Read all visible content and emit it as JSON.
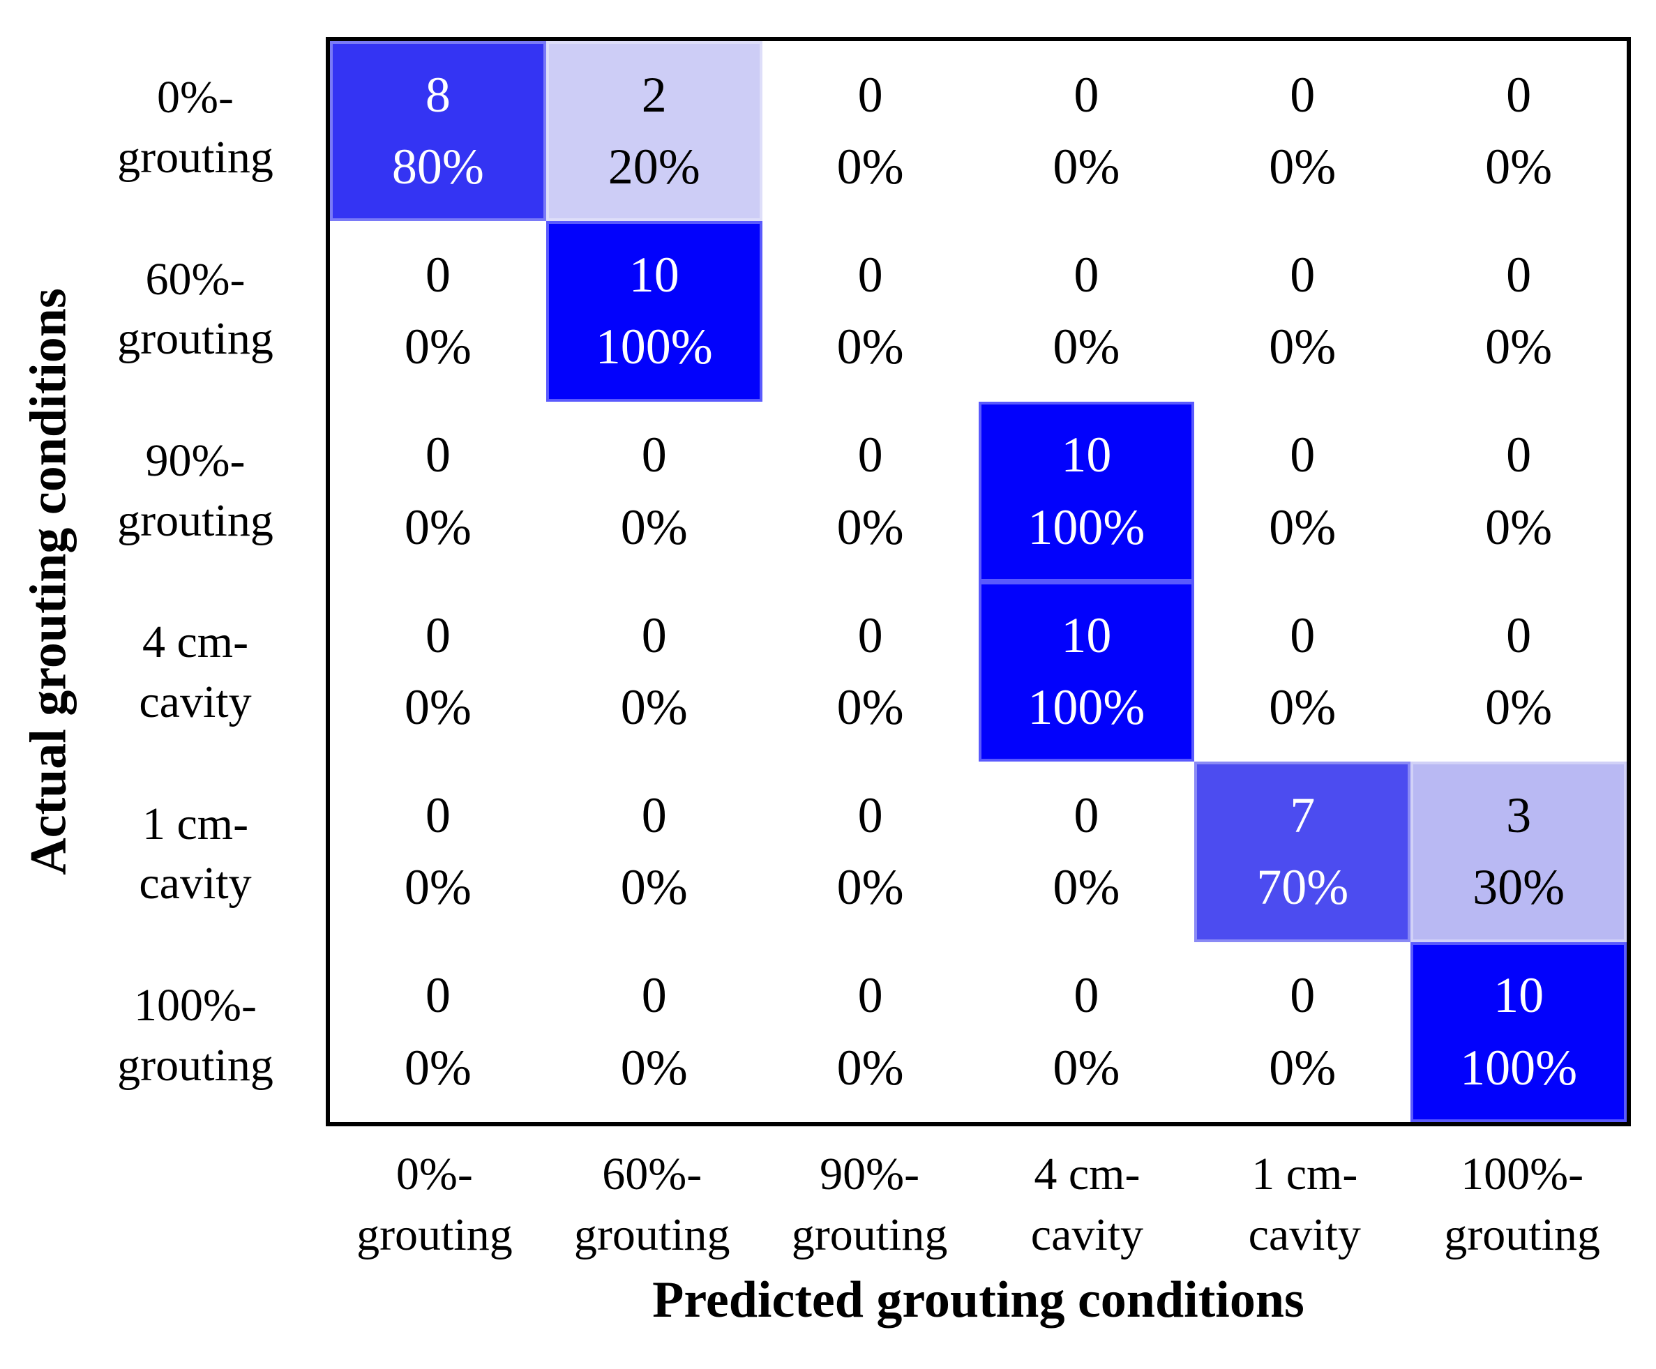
{
  "figure": {
    "background": "#ffffff",
    "matrix_border_color": "#000000"
  },
  "x_axis": {
    "title": "Predicted grouting conditions",
    "labels": [
      {
        "line1": "0%-",
        "line2": "grouting"
      },
      {
        "line1": "60%-",
        "line2": "grouting"
      },
      {
        "line1": "90%-",
        "line2": "grouting"
      },
      {
        "line1": "4 cm-",
        "line2": "cavity"
      },
      {
        "line1": "1 cm-",
        "line2": "cavity"
      },
      {
        "line1": "100%-",
        "line2": "grouting"
      }
    ]
  },
  "y_axis": {
    "title": "Actual grouting conditions",
    "labels": [
      {
        "line1": "0%-",
        "line2": "grouting"
      },
      {
        "line1": "60%-",
        "line2": "grouting"
      },
      {
        "line1": "90%-",
        "line2": "grouting"
      },
      {
        "line1": "4 cm-",
        "line2": "cavity"
      },
      {
        "line1": "1 cm-",
        "line2": "cavity"
      },
      {
        "line1": "100%-",
        "line2": "grouting"
      }
    ]
  },
  "chart_data": {
    "type": "heatmap",
    "xlabel": "Predicted grouting conditions",
    "ylabel": "Actual grouting conditions",
    "x_categories": [
      "0%-grouting",
      "60%-grouting",
      "90%-grouting",
      "4 cm-cavity",
      "1 cm-cavity",
      "100%-grouting"
    ],
    "y_categories": [
      "0%-grouting",
      "60%-grouting",
      "90%-grouting",
      "4 cm-cavity",
      "1 cm-cavity",
      "100%-grouting"
    ],
    "counts": [
      [
        8,
        2,
        0,
        0,
        0,
        0
      ],
      [
        0,
        10,
        0,
        0,
        0,
        0
      ],
      [
        0,
        0,
        0,
        10,
        0,
        0
      ],
      [
        0,
        0,
        0,
        10,
        0,
        0
      ],
      [
        0,
        0,
        0,
        0,
        7,
        3
      ],
      [
        0,
        0,
        0,
        0,
        0,
        10
      ]
    ],
    "percents": [
      [
        80,
        20,
        0,
        0,
        0,
        0
      ],
      [
        0,
        100,
        0,
        0,
        0,
        0
      ],
      [
        0,
        0,
        0,
        100,
        0,
        0
      ],
      [
        0,
        0,
        0,
        100,
        0,
        0
      ],
      [
        0,
        0,
        0,
        0,
        70,
        30
      ],
      [
        0,
        0,
        0,
        0,
        0,
        100
      ]
    ],
    "colormap": {
      "pct0": "#ffffff",
      "pct20": "#cdcdf6",
      "pct30": "#b9b9f3",
      "pct70": "#4c4cf0",
      "pct80": "#3434f3",
      "pct100": "#0202fc"
    },
    "grid": false,
    "legend": false,
    "cells": [
      [
        {
          "count": "8",
          "percent": "80%",
          "bg": "#3434f3",
          "fg": "#ffffff"
        },
        {
          "count": "2",
          "percent": "20%",
          "bg": "#cdcdf6",
          "fg": "#000000"
        },
        {
          "count": "0",
          "percent": "0%",
          "bg": "#ffffff",
          "fg": "#000000"
        },
        {
          "count": "0",
          "percent": "0%",
          "bg": "#ffffff",
          "fg": "#000000"
        },
        {
          "count": "0",
          "percent": "0%",
          "bg": "#ffffff",
          "fg": "#000000"
        },
        {
          "count": "0",
          "percent": "0%",
          "bg": "#ffffff",
          "fg": "#000000"
        }
      ],
      [
        {
          "count": "0",
          "percent": "0%",
          "bg": "#ffffff",
          "fg": "#000000"
        },
        {
          "count": "10",
          "percent": "100%",
          "bg": "#0202fc",
          "fg": "#ffffff"
        },
        {
          "count": "0",
          "percent": "0%",
          "bg": "#ffffff",
          "fg": "#000000"
        },
        {
          "count": "0",
          "percent": "0%",
          "bg": "#ffffff",
          "fg": "#000000"
        },
        {
          "count": "0",
          "percent": "0%",
          "bg": "#ffffff",
          "fg": "#000000"
        },
        {
          "count": "0",
          "percent": "0%",
          "bg": "#ffffff",
          "fg": "#000000"
        }
      ],
      [
        {
          "count": "0",
          "percent": "0%",
          "bg": "#ffffff",
          "fg": "#000000"
        },
        {
          "count": "0",
          "percent": "0%",
          "bg": "#ffffff",
          "fg": "#000000"
        },
        {
          "count": "0",
          "percent": "0%",
          "bg": "#ffffff",
          "fg": "#000000"
        },
        {
          "count": "10",
          "percent": "100%",
          "bg": "#0202fc",
          "fg": "#ffffff"
        },
        {
          "count": "0",
          "percent": "0%",
          "bg": "#ffffff",
          "fg": "#000000"
        },
        {
          "count": "0",
          "percent": "0%",
          "bg": "#ffffff",
          "fg": "#000000"
        }
      ],
      [
        {
          "count": "0",
          "percent": "0%",
          "bg": "#ffffff",
          "fg": "#000000"
        },
        {
          "count": "0",
          "percent": "0%",
          "bg": "#ffffff",
          "fg": "#000000"
        },
        {
          "count": "0",
          "percent": "0%",
          "bg": "#ffffff",
          "fg": "#000000"
        },
        {
          "count": "10",
          "percent": "100%",
          "bg": "#0202fc",
          "fg": "#ffffff"
        },
        {
          "count": "0",
          "percent": "0%",
          "bg": "#ffffff",
          "fg": "#000000"
        },
        {
          "count": "0",
          "percent": "0%",
          "bg": "#ffffff",
          "fg": "#000000"
        }
      ],
      [
        {
          "count": "0",
          "percent": "0%",
          "bg": "#ffffff",
          "fg": "#000000"
        },
        {
          "count": "0",
          "percent": "0%",
          "bg": "#ffffff",
          "fg": "#000000"
        },
        {
          "count": "0",
          "percent": "0%",
          "bg": "#ffffff",
          "fg": "#000000"
        },
        {
          "count": "0",
          "percent": "0%",
          "bg": "#ffffff",
          "fg": "#000000"
        },
        {
          "count": "7",
          "percent": "70%",
          "bg": "#4c4cf0",
          "fg": "#ffffff"
        },
        {
          "count": "3",
          "percent": "30%",
          "bg": "#b9b9f3",
          "fg": "#000000"
        }
      ],
      [
        {
          "count": "0",
          "percent": "0%",
          "bg": "#ffffff",
          "fg": "#000000"
        },
        {
          "count": "0",
          "percent": "0%",
          "bg": "#ffffff",
          "fg": "#000000"
        },
        {
          "count": "0",
          "percent": "0%",
          "bg": "#ffffff",
          "fg": "#000000"
        },
        {
          "count": "0",
          "percent": "0%",
          "bg": "#ffffff",
          "fg": "#000000"
        },
        {
          "count": "0",
          "percent": "0%",
          "bg": "#ffffff",
          "fg": "#000000"
        },
        {
          "count": "10",
          "percent": "100%",
          "bg": "#0202fc",
          "fg": "#ffffff"
        }
      ]
    ]
  }
}
